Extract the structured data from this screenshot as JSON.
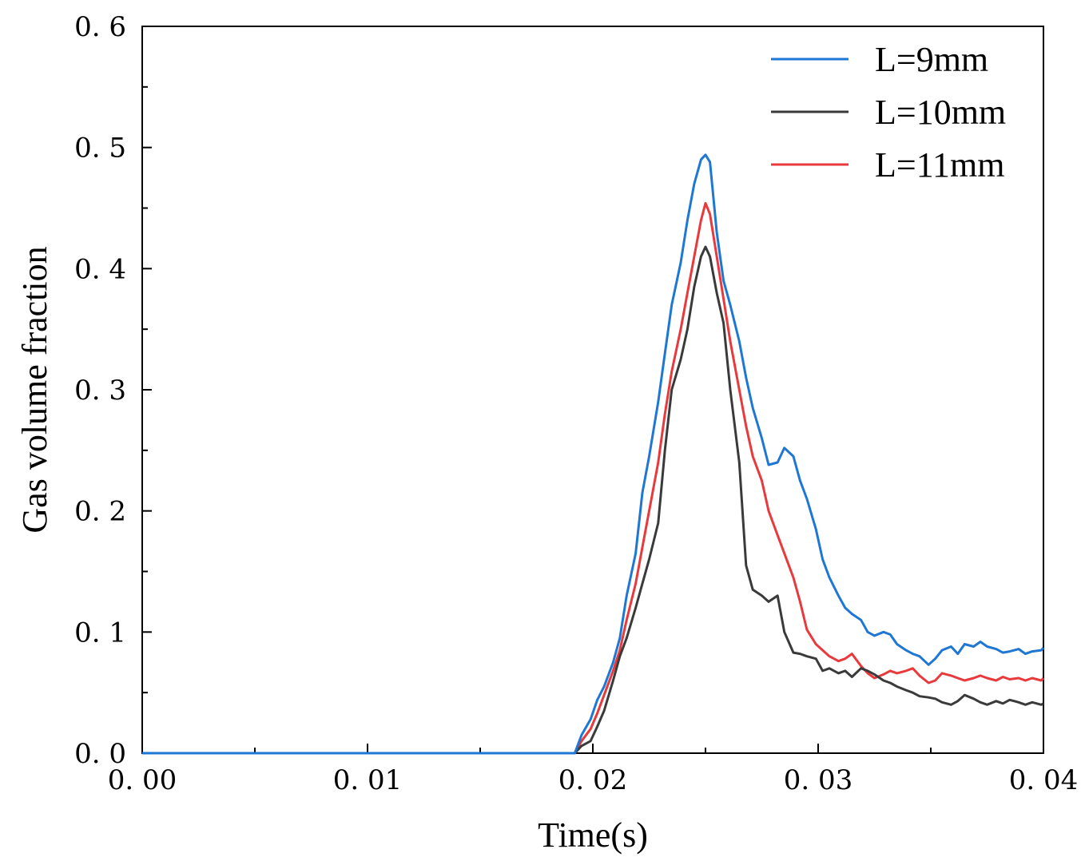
{
  "chart_data": {
    "type": "line",
    "title": "",
    "xlabel": "Time(s)",
    "ylabel": "Gas volume fraction",
    "xlim": [
      0.0,
      0.04
    ],
    "ylim": [
      0.0,
      0.6
    ],
    "xticks": [
      0.0,
      0.01,
      0.02,
      0.03,
      0.04
    ],
    "xtick_labels": [
      "0. 00",
      "0. 01",
      "0. 02",
      "0. 03",
      "0. 04"
    ],
    "yticks": [
      0.0,
      0.1,
      0.2,
      0.3,
      0.4,
      0.5,
      0.6
    ],
    "ytick_labels": [
      "0. 0",
      "0. 1",
      "0. 2",
      "0. 3",
      "0. 4",
      "0. 5",
      "0. 6"
    ],
    "grid": false,
    "legend_position": "top-right",
    "series": [
      {
        "name": "L=9mm",
        "color": "#1f77d4",
        "x": [
          0.0,
          0.0192,
          0.0195,
          0.0199,
          0.0202,
          0.0205,
          0.0209,
          0.0212,
          0.0215,
          0.0219,
          0.0222,
          0.0225,
          0.0229,
          0.0232,
          0.0235,
          0.0239,
          0.0242,
          0.0245,
          0.0248,
          0.025,
          0.0252,
          0.0255,
          0.0258,
          0.0261,
          0.0265,
          0.0268,
          0.0271,
          0.0275,
          0.0278,
          0.0282,
          0.0285,
          0.0289,
          0.0292,
          0.0295,
          0.0299,
          0.0302,
          0.0305,
          0.0309,
          0.0312,
          0.0315,
          0.0319,
          0.0322,
          0.0325,
          0.0329,
          0.0332,
          0.0335,
          0.0339,
          0.0342,
          0.0345,
          0.0349,
          0.0352,
          0.0355,
          0.0359,
          0.0362,
          0.0365,
          0.0369,
          0.0372,
          0.0375,
          0.0379,
          0.0382,
          0.0385,
          0.0389,
          0.0392,
          0.0395,
          0.0399,
          0.04
        ],
        "y": [
          0.0,
          0.0,
          0.015,
          0.028,
          0.044,
          0.055,
          0.075,
          0.095,
          0.13,
          0.165,
          0.215,
          0.245,
          0.29,
          0.33,
          0.37,
          0.405,
          0.44,
          0.47,
          0.49,
          0.494,
          0.488,
          0.43,
          0.39,
          0.37,
          0.34,
          0.31,
          0.285,
          0.26,
          0.238,
          0.24,
          0.252,
          0.245,
          0.225,
          0.21,
          0.185,
          0.16,
          0.145,
          0.13,
          0.12,
          0.115,
          0.11,
          0.1,
          0.097,
          0.1,
          0.098,
          0.09,
          0.085,
          0.082,
          0.08,
          0.073,
          0.078,
          0.085,
          0.088,
          0.082,
          0.09,
          0.088,
          0.092,
          0.088,
          0.086,
          0.083,
          0.084,
          0.086,
          0.082,
          0.084,
          0.085,
          0.087
        ]
      },
      {
        "name": "L=10mm",
        "color": "#3a3a3a",
        "x": [
          0.0,
          0.0192,
          0.0195,
          0.0199,
          0.0202,
          0.0205,
          0.0209,
          0.0212,
          0.0215,
          0.0219,
          0.0222,
          0.0225,
          0.0229,
          0.0232,
          0.0235,
          0.0239,
          0.0242,
          0.0245,
          0.0248,
          0.025,
          0.0252,
          0.0255,
          0.0258,
          0.0261,
          0.0265,
          0.0268,
          0.0271,
          0.0275,
          0.0278,
          0.0282,
          0.0285,
          0.0289,
          0.0292,
          0.0295,
          0.0299,
          0.0302,
          0.0305,
          0.0309,
          0.0312,
          0.0315,
          0.0319,
          0.0322,
          0.0325,
          0.0329,
          0.0332,
          0.0335,
          0.0339,
          0.0342,
          0.0345,
          0.0349,
          0.0352,
          0.0355,
          0.0359,
          0.0362,
          0.0365,
          0.0369,
          0.0372,
          0.0375,
          0.0379,
          0.0382,
          0.0385,
          0.0389,
          0.0392,
          0.0395,
          0.0399,
          0.04
        ],
        "y": [
          0.0,
          0.0,
          0.006,
          0.01,
          0.022,
          0.035,
          0.06,
          0.08,
          0.095,
          0.12,
          0.14,
          0.16,
          0.19,
          0.25,
          0.3,
          0.325,
          0.35,
          0.385,
          0.41,
          0.418,
          0.41,
          0.38,
          0.355,
          0.3,
          0.24,
          0.155,
          0.135,
          0.13,
          0.125,
          0.13,
          0.1,
          0.083,
          0.082,
          0.08,
          0.078,
          0.068,
          0.07,
          0.066,
          0.068,
          0.063,
          0.07,
          0.068,
          0.065,
          0.06,
          0.058,
          0.055,
          0.052,
          0.05,
          0.047,
          0.046,
          0.045,
          0.042,
          0.04,
          0.043,
          0.048,
          0.045,
          0.042,
          0.04,
          0.043,
          0.041,
          0.044,
          0.042,
          0.04,
          0.042,
          0.04,
          0.041
        ]
      },
      {
        "name": "L=11mm",
        "color": "#e8393c",
        "x": [
          0.0,
          0.0192,
          0.0195,
          0.0199,
          0.0202,
          0.0205,
          0.0209,
          0.0212,
          0.0215,
          0.0219,
          0.0222,
          0.0225,
          0.0229,
          0.0232,
          0.0235,
          0.0239,
          0.0242,
          0.0245,
          0.0248,
          0.025,
          0.0252,
          0.0255,
          0.0258,
          0.0261,
          0.0265,
          0.0268,
          0.0271,
          0.0275,
          0.0278,
          0.0282,
          0.0285,
          0.0289,
          0.0292,
          0.0295,
          0.0299,
          0.0302,
          0.0305,
          0.0309,
          0.0312,
          0.0315,
          0.0319,
          0.0322,
          0.0325,
          0.0329,
          0.0332,
          0.0335,
          0.0339,
          0.0342,
          0.0345,
          0.0349,
          0.0352,
          0.0355,
          0.0359,
          0.0362,
          0.0365,
          0.0369,
          0.0372,
          0.0375,
          0.0379,
          0.0382,
          0.0385,
          0.0389,
          0.0392,
          0.0395,
          0.0399,
          0.04
        ],
        "y": [
          0.0,
          0.0,
          0.01,
          0.02,
          0.033,
          0.048,
          0.068,
          0.085,
          0.11,
          0.14,
          0.17,
          0.2,
          0.24,
          0.28,
          0.315,
          0.35,
          0.38,
          0.41,
          0.44,
          0.454,
          0.445,
          0.41,
          0.375,
          0.34,
          0.3,
          0.27,
          0.245,
          0.225,
          0.2,
          0.18,
          0.165,
          0.145,
          0.125,
          0.102,
          0.09,
          0.085,
          0.08,
          0.076,
          0.078,
          0.082,
          0.072,
          0.066,
          0.062,
          0.065,
          0.068,
          0.066,
          0.068,
          0.07,
          0.064,
          0.058,
          0.06,
          0.066,
          0.064,
          0.062,
          0.06,
          0.062,
          0.064,
          0.062,
          0.06,
          0.063,
          0.061,
          0.062,
          0.06,
          0.062,
          0.06,
          0.062
        ]
      }
    ]
  }
}
